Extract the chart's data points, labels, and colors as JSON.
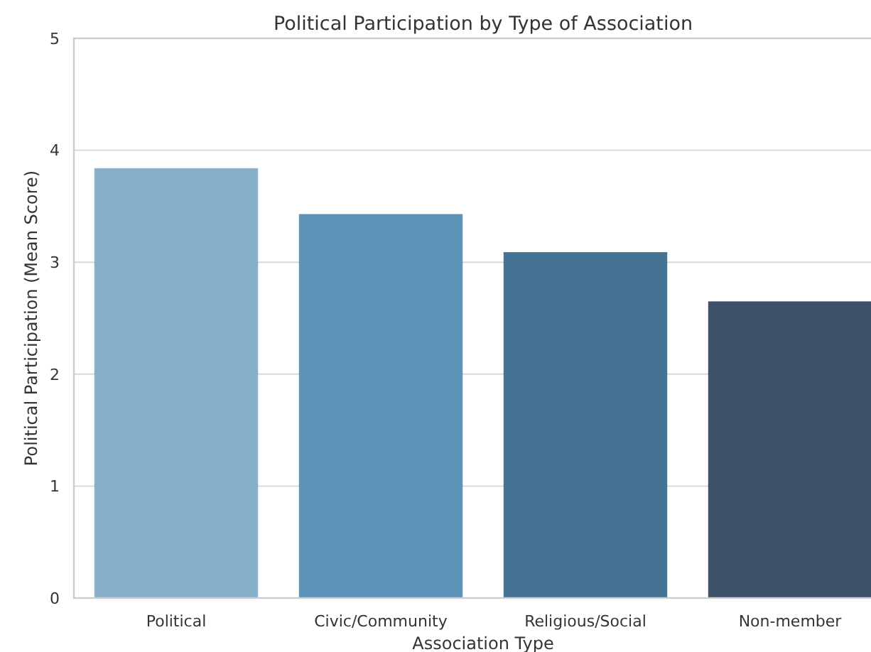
{
  "chart_data": {
    "type": "bar",
    "title": "Political Participation by Type of Association",
    "xlabel": "Association Type",
    "ylabel": "Political Participation (Mean Score)",
    "categories": [
      "Political",
      "Civic/Community",
      "Religious/Social",
      "Non-member"
    ],
    "values": [
      3.84,
      3.43,
      3.09,
      2.65
    ],
    "colors": [
      "#88afca",
      "#5f93b9",
      "#447394",
      "#3d5268"
    ],
    "ylim": [
      0,
      5
    ],
    "yticks": [
      0,
      1,
      2,
      3,
      4,
      5
    ],
    "grid": "y"
  }
}
